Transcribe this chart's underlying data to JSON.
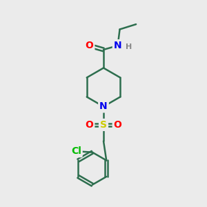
{
  "background_color": "#ebebeb",
  "bond_color": "#2d6e4e",
  "bond_width": 1.8,
  "atom_colors": {
    "N": "#0000ee",
    "O": "#ff0000",
    "S": "#cccc00",
    "Cl": "#00bb00",
    "H": "#888888",
    "C": "#2d6e4e"
  },
  "font_size_atoms": 10,
  "font_size_H": 8,
  "font_size_Cl": 10
}
